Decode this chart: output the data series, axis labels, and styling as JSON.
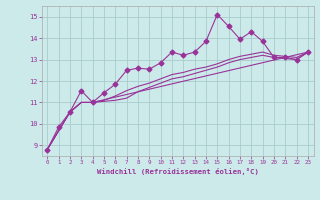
{
  "xlabel": "Windchill (Refroidissement éolien,°C)",
  "background_color": "#cceaea",
  "grid_color": "#aacccc",
  "line_color": "#993399",
  "xlim": [
    -0.5,
    23.5
  ],
  "ylim": [
    8.5,
    15.5
  ],
  "xticks": [
    0,
    1,
    2,
    3,
    4,
    5,
    6,
    7,
    8,
    9,
    10,
    11,
    12,
    13,
    14,
    15,
    16,
    17,
    18,
    19,
    20,
    21,
    22,
    23
  ],
  "yticks": [
    9,
    10,
    11,
    12,
    13,
    14,
    15
  ],
  "curve1_x": [
    0,
    1,
    2,
    3,
    4,
    5,
    6,
    7,
    8,
    9,
    10,
    11,
    12,
    13,
    14,
    15,
    16,
    17,
    18,
    19,
    20,
    21,
    22,
    23
  ],
  "curve1_y": [
    8.8,
    9.85,
    10.55,
    11.55,
    11.0,
    11.45,
    11.85,
    12.5,
    12.6,
    12.55,
    12.85,
    13.35,
    13.2,
    13.35,
    13.85,
    15.1,
    14.55,
    13.95,
    14.3,
    13.85,
    13.1,
    13.1,
    13.0,
    13.35
  ],
  "curve2_x": [
    0,
    2,
    3,
    4,
    5,
    6,
    7,
    8,
    9,
    10,
    11,
    12,
    13,
    14,
    15,
    16,
    17,
    18,
    19,
    20,
    21,
    22,
    23
  ],
  "curve2_y": [
    8.8,
    10.55,
    11.0,
    11.0,
    11.05,
    11.1,
    11.2,
    11.5,
    11.7,
    11.9,
    12.1,
    12.2,
    12.35,
    12.5,
    12.65,
    12.85,
    13.0,
    13.1,
    13.2,
    13.1,
    13.05,
    13.0,
    13.35
  ],
  "curve3_x": [
    0,
    2,
    3,
    4,
    5,
    6,
    7,
    8,
    9,
    10,
    11,
    12,
    13,
    14,
    15,
    16,
    17,
    18,
    19,
    20,
    21,
    22,
    23
  ],
  "curve3_y": [
    8.8,
    10.55,
    11.0,
    11.0,
    11.1,
    11.3,
    11.55,
    11.75,
    11.9,
    12.1,
    12.3,
    12.4,
    12.55,
    12.65,
    12.8,
    13.0,
    13.15,
    13.25,
    13.35,
    13.2,
    13.15,
    13.1,
    13.35
  ],
  "curve4_x": [
    0,
    2,
    3,
    4,
    23
  ],
  "curve4_y": [
    8.8,
    10.55,
    11.0,
    11.0,
    13.35
  ],
  "marker_size": 2.5,
  "linewidth": 0.8
}
